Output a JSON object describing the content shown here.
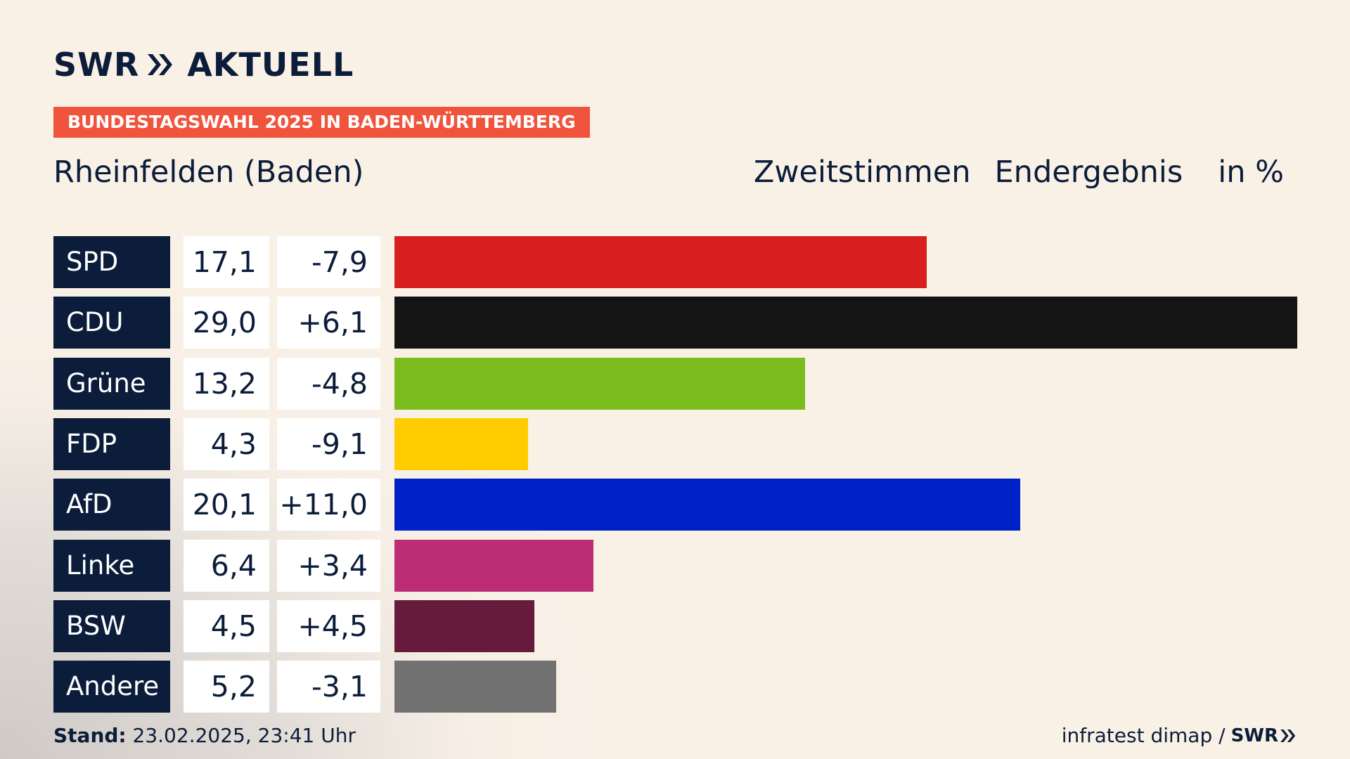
{
  "header": {
    "logo_text": "SWR",
    "logo_suffix": "AKTUELL",
    "badge": "BUNDESTAGSWAHL 2025 IN BADEN-WÜRTTEMBERG",
    "place": "Rheinfelden (Baden)",
    "vote_type": "Zweitstimmen",
    "status": "Endergebnis",
    "unit": "in %"
  },
  "footer": {
    "stand_label": "Stand:",
    "stand_value": "23.02.2025, 23:41 Uhr",
    "source": "infratest dimap /",
    "source_logo": "SWR"
  },
  "colors": {
    "navy": "#0b1d3a",
    "badge": "#f0543d"
  },
  "chart_data": {
    "type": "bar",
    "categories": [
      "SPD",
      "CDU",
      "Grüne",
      "FDP",
      "AfD",
      "Linke",
      "BSW",
      "Andere"
    ],
    "values": [
      17.1,
      29.0,
      13.2,
      4.3,
      20.1,
      6.4,
      4.5,
      5.2
    ],
    "value_labels": [
      "17,1",
      "29,0",
      "13,2",
      "4,3",
      "20,1",
      "6,4",
      "4,5",
      "5,2"
    ],
    "changes": [
      -7.9,
      6.1,
      -4.8,
      -9.1,
      11.0,
      3.4,
      4.5,
      -3.1
    ],
    "change_labels": [
      "-7,9",
      "+6,1",
      "-4,8",
      "-9,1",
      "+11,0",
      "+3,4",
      "+4,5",
      "-3,1"
    ],
    "colors": [
      "#d81f1f",
      "#141414",
      "#7bbd1c",
      "#ffcc00",
      "#0021c8",
      "#bb2e75",
      "#661a3c",
      "#727272"
    ],
    "xlim": [
      0,
      29.0
    ],
    "orientation": "horizontal",
    "grid": false
  }
}
